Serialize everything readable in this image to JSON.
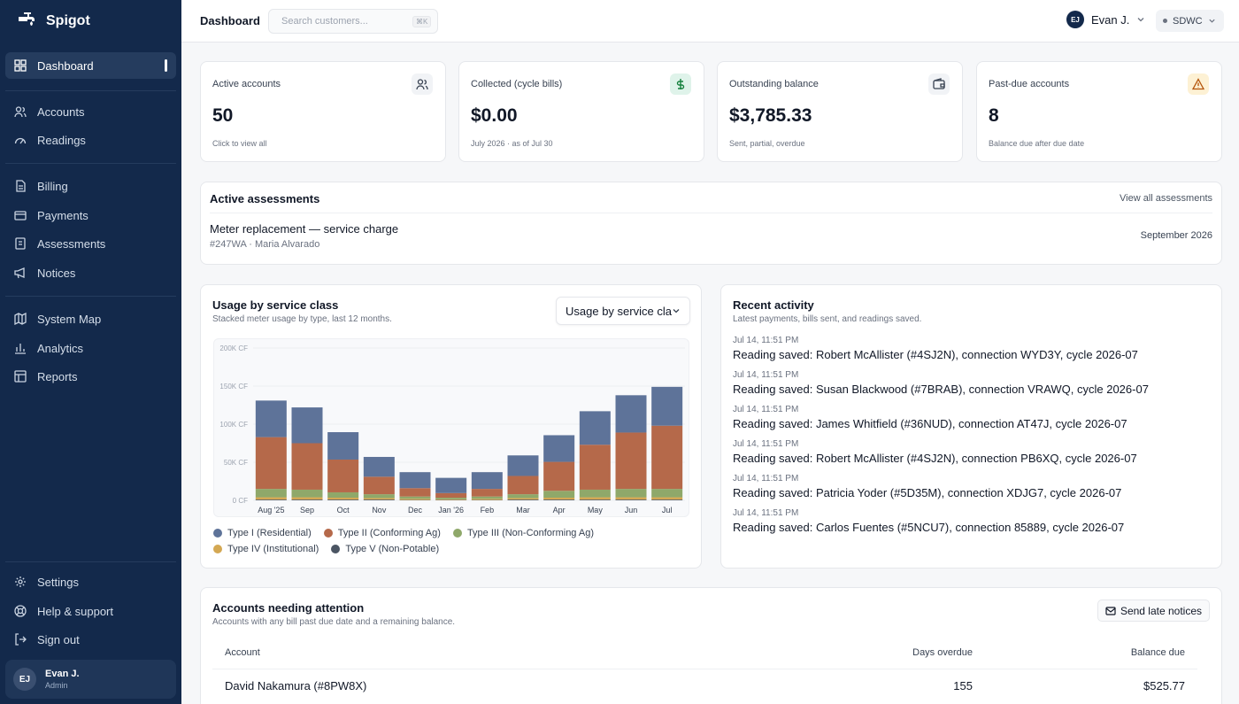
{
  "app": {
    "name": "Spigot"
  },
  "sidebar": {
    "items": [
      {
        "label": "Dashboard",
        "icon": "grid-icon"
      },
      {
        "label": "Accounts",
        "icon": "users-icon"
      },
      {
        "label": "Readings",
        "icon": "gauge-icon"
      },
      {
        "label": "Billing",
        "icon": "document-icon"
      },
      {
        "label": "Payments",
        "icon": "card-icon"
      },
      {
        "label": "Assessments",
        "icon": "receipt-icon"
      },
      {
        "label": "Notices",
        "icon": "megaphone-icon"
      },
      {
        "label": "System Map",
        "icon": "map-icon"
      },
      {
        "label": "Analytics",
        "icon": "bar-chart-icon"
      },
      {
        "label": "Reports",
        "icon": "table-icon"
      }
    ],
    "footer": [
      {
        "label": "Settings",
        "icon": "gear-icon"
      },
      {
        "label": "Help & support",
        "icon": "lifebuoy-icon"
      },
      {
        "label": "Sign out",
        "icon": "sign-out-icon"
      }
    ],
    "user": {
      "initials": "EJ",
      "name": "Evan J.",
      "role": "Admin"
    }
  },
  "header": {
    "title": "Dashboard",
    "search_placeholder": "Search customers...",
    "shortcut": "⌘K",
    "user_initials": "EJ",
    "user_name": "Evan J.",
    "org": "SDWC"
  },
  "stats": [
    {
      "label": "Active accounts",
      "value": "50",
      "sub": "Click to view all",
      "icon": "users-icon"
    },
    {
      "label": "Collected (cycle bills)",
      "value": "$0.00",
      "sub": "July 2026 · as of Jul 30",
      "icon": "dollar-icon"
    },
    {
      "label": "Outstanding balance",
      "value": "$3,785.33",
      "sub": "Sent, partial, overdue",
      "icon": "wallet-icon"
    },
    {
      "label": "Past-due accounts",
      "value": "8",
      "sub": "Balance due after due date",
      "icon": "warning-icon"
    }
  ],
  "assessments": {
    "title": "Active assessments",
    "link": "View all assessments",
    "item": {
      "title": "Meter replacement — service charge",
      "meta": "#247WA · Maria Alvarado",
      "date": "September 2026"
    }
  },
  "usage": {
    "title": "Usage by service class",
    "subtitle": "Stacked meter usage by type, last 12 months.",
    "select_value": "Usage by service class"
  },
  "chart_data": {
    "type": "bar",
    "stacked": true,
    "categories": [
      "Aug '25",
      "Sep",
      "Oct",
      "Nov",
      "Dec",
      "Jan '26",
      "Feb",
      "Mar",
      "Apr",
      "May",
      "Jun",
      "Jul"
    ],
    "y_ticks": [
      "0 CF",
      "50K CF",
      "100K CF",
      "150K CF",
      "200K CF"
    ],
    "ylim": [
      0,
      200000
    ],
    "series": [
      {
        "name": "Type V (Non-Potable)",
        "color": "#4b5563",
        "values": [
          1000,
          1000,
          1000,
          1000,
          500,
          500,
          500,
          1000,
          1000,
          1000,
          1000,
          1000
        ]
      },
      {
        "name": "Type IV (Institutional)",
        "color": "#d4a853",
        "values": [
          3000,
          3000,
          2500,
          2000,
          1500,
          1000,
          1500,
          2000,
          2500,
          3000,
          3000,
          3000
        ]
      },
      {
        "name": "Type III (Non-Conforming Ag)",
        "color": "#8fa86a",
        "values": [
          11000,
          10000,
          7000,
          5000,
          3000,
          2000,
          3000,
          5000,
          9000,
          10000,
          11000,
          11000
        ]
      },
      {
        "name": "Type II (Conforming Ag)",
        "color": "#b5694a",
        "values": [
          68000,
          61000,
          43000,
          23000,
          11000,
          6000,
          10000,
          24000,
          38000,
          59000,
          74000,
          83000
        ]
      },
      {
        "name": "Type I (Residential)",
        "color": "#5e7399",
        "values": [
          48000,
          47000,
          36000,
          26000,
          21000,
          20000,
          22000,
          27000,
          35000,
          44000,
          49000,
          51000
        ]
      }
    ],
    "legend": [
      {
        "name": "Type I (Residential)",
        "color": "#5e7399"
      },
      {
        "name": "Type II (Conforming Ag)",
        "color": "#b5694a"
      },
      {
        "name": "Type III (Non-Conforming Ag)",
        "color": "#8fa86a"
      },
      {
        "name": "Type IV (Institutional)",
        "color": "#d4a853"
      },
      {
        "name": "Type V (Non-Potable)",
        "color": "#4b5563"
      }
    ]
  },
  "activity": {
    "title": "Recent activity",
    "subtitle": "Latest payments, bills sent, and readings saved.",
    "items": [
      {
        "time": "Jul 14, 11:51 PM",
        "text": "Reading saved: Robert McAllister (#4SJ2N), connection WYD3Y, cycle 2026-07"
      },
      {
        "time": "Jul 14, 11:51 PM",
        "text": "Reading saved: Susan Blackwood (#7BRAB), connection VRAWQ, cycle 2026-07"
      },
      {
        "time": "Jul 14, 11:51 PM",
        "text": "Reading saved: James Whitfield (#36NUD), connection AT47J, cycle 2026-07"
      },
      {
        "time": "Jul 14, 11:51 PM",
        "text": "Reading saved: Robert McAllister (#4SJ2N), connection PB6XQ, cycle 2026-07"
      },
      {
        "time": "Jul 14, 11:51 PM",
        "text": "Reading saved: Patricia Yoder (#5D35M), connection XDJG7, cycle 2026-07"
      },
      {
        "time": "Jul 14, 11:51 PM",
        "text": "Reading saved: Carlos Fuentes (#5NCU7), connection 85889, cycle 2026-07"
      }
    ]
  },
  "attention": {
    "title": "Accounts needing attention",
    "subtitle": "Accounts with any bill past due date and a remaining balance.",
    "button": "Send late notices",
    "columns": [
      "Account",
      "Days overdue",
      "Balance due"
    ],
    "rows": [
      {
        "account": "David Nakamura (#8PW8X)",
        "days": "155",
        "balance": "$525.77"
      }
    ]
  }
}
